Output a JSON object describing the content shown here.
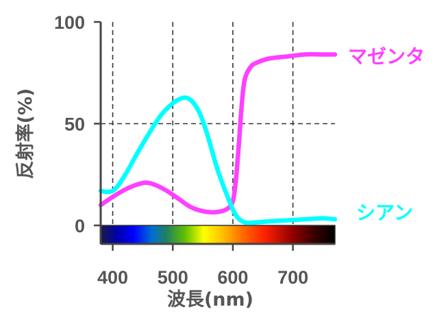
{
  "chart_data": {
    "type": "line",
    "title": "",
    "xlabel": "波長(nm)",
    "ylabel": "反射率(%)",
    "xlim": [
      380,
      770
    ],
    "ylim": [
      0,
      100
    ],
    "xticks": [
      400,
      500,
      600,
      700
    ],
    "xtick_labels": [
      "400",
      "500",
      "600",
      "700"
    ],
    "yticks": [
      0,
      50,
      100
    ],
    "ytick_labels": [
      "0",
      "50",
      "100"
    ],
    "grid": "dashed",
    "spectrum_bar": true,
    "series": [
      {
        "name": "マゼンタ",
        "color": "#ff40ff",
        "x": [
          380,
          400,
          420,
          440,
          455,
          470,
          490,
          510,
          530,
          550,
          570,
          590,
          600,
          605,
          610,
          615,
          620,
          630,
          640,
          660,
          690,
          720,
          750,
          770
        ],
        "y": [
          10,
          14,
          17.5,
          20,
          21,
          20,
          17,
          13,
          9,
          7,
          6.5,
          8,
          12,
          22,
          40,
          60,
          72,
          78,
          80,
          82,
          83,
          84,
          84,
          84
        ]
      },
      {
        "name": "シアン",
        "color": "#00ffff",
        "x": [
          380,
          390,
          400,
          410,
          425,
          440,
          460,
          480,
          500,
          515,
          525,
          535,
          545,
          555,
          565,
          575,
          590,
          605,
          620,
          640,
          660,
          690,
          720,
          750,
          770
        ],
        "y": [
          17,
          16.5,
          17,
          20,
          27,
          35,
          45,
          54,
          60,
          62.5,
          62.5,
          60,
          55,
          47,
          37,
          27,
          15,
          5,
          1.5,
          1.5,
          2,
          2.5,
          3,
          3.5,
          3
        ]
      }
    ]
  }
}
